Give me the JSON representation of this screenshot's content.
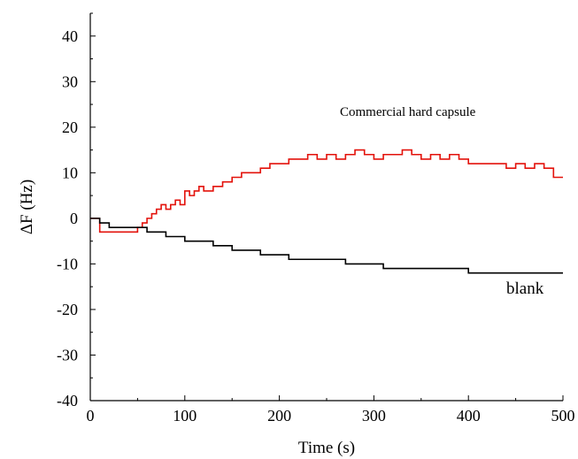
{
  "chart_data": {
    "type": "line",
    "title": "",
    "xlabel": "Time (s)",
    "ylabel": "ΔF (Hz)",
    "xlim": [
      0,
      500
    ],
    "ylim": [
      -40,
      45
    ],
    "x_ticks": [
      0,
      100,
      200,
      300,
      400,
      500
    ],
    "x_tick_labels": [
      "0",
      "100",
      "200",
      "300",
      "400",
      "500"
    ],
    "y_ticks": [
      -40,
      -30,
      -20,
      -10,
      0,
      10,
      20,
      30,
      40
    ],
    "y_tick_labels": [
      "-40",
      "-30",
      "-20",
      "-10",
      "0",
      "10",
      "20",
      "30",
      "40"
    ],
    "grid": false,
    "annotations": [
      {
        "text": "Commercial hard capsule",
        "series": 0
      },
      {
        "text": "blank",
        "series": 1
      }
    ],
    "series": [
      {
        "name": "Commercial hard capsule",
        "color": "#e3120b",
        "x": [
          0,
          10,
          20,
          30,
          40,
          50,
          55,
          60,
          65,
          70,
          75,
          80,
          85,
          90,
          95,
          100,
          105,
          110,
          115,
          120,
          130,
          140,
          150,
          160,
          170,
          180,
          190,
          200,
          210,
          220,
          230,
          240,
          250,
          260,
          270,
          280,
          290,
          300,
          310,
          320,
          330,
          340,
          350,
          360,
          370,
          380,
          390,
          400,
          410,
          420,
          430,
          440,
          450,
          460,
          470,
          480,
          490,
          500
        ],
        "y": [
          0,
          -3,
          -3,
          -3,
          -3,
          -2,
          -1,
          0,
          1,
          2,
          3,
          2,
          3,
          4,
          3,
          6,
          5,
          6,
          7,
          6,
          7,
          8,
          9,
          10,
          10,
          11,
          12,
          12,
          13,
          13,
          14,
          13,
          14,
          13,
          14,
          15,
          14,
          13,
          14,
          14,
          15,
          14,
          13,
          14,
          13,
          14,
          13,
          12,
          12,
          12,
          12,
          11,
          12,
          11,
          12,
          11,
          9,
          9
        ]
      },
      {
        "name": "blank",
        "color": "#000000",
        "x": [
          0,
          10,
          20,
          30,
          40,
          50,
          60,
          70,
          80,
          90,
          100,
          110,
          120,
          130,
          140,
          150,
          160,
          170,
          180,
          190,
          200,
          210,
          220,
          230,
          240,
          250,
          260,
          270,
          280,
          290,
          300,
          310,
          320,
          330,
          340,
          350,
          360,
          370,
          380,
          390,
          400,
          410,
          420,
          430,
          440,
          450,
          460,
          470,
          480,
          490,
          500
        ],
        "y": [
          0,
          -1,
          -2,
          -2,
          -2,
          -2,
          -3,
          -3,
          -4,
          -4,
          -5,
          -5,
          -5,
          -6,
          -6,
          -7,
          -7,
          -7,
          -8,
          -8,
          -8,
          -9,
          -9,
          -9,
          -9,
          -9,
          -9,
          -10,
          -10,
          -10,
          -10,
          -11,
          -11,
          -11,
          -11,
          -11,
          -11,
          -11,
          -11,
          -11,
          -12,
          -12,
          -12,
          -12,
          -12,
          -12,
          -12,
          -12,
          -12,
          -12,
          -12
        ]
      }
    ]
  }
}
